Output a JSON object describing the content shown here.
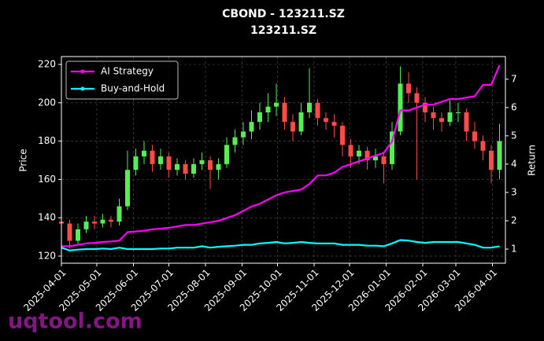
{
  "chart_data": {
    "type": "candlestick",
    "title": "CBOND - 123211.SZ",
    "subtitle": "123211.SZ",
    "ylabel": "Price",
    "y2label": "Return",
    "watermark": "uqtool.com",
    "grid": true,
    "legend": "upper left",
    "up_color": "#55ee55",
    "down_color": "#ff4a4a",
    "xlim": [
      "2025-04-01",
      "2026-04-12"
    ],
    "xticks": [
      "2025-04-01",
      "2025-05-01",
      "2025-06-01",
      "2025-07-01",
      "2025-08-01",
      "2025-09-01",
      "2025-10-01",
      "2025-11-01",
      "2025-12-01",
      "2026-01-01",
      "2026-02-01",
      "2026-03-01",
      "2026-04-01"
    ],
    "ylim": [
      116.3,
      224.1
    ],
    "yticks": [
      120,
      140,
      160,
      180,
      200,
      220
    ],
    "y2lim": [
      0.5,
      7.8
    ],
    "y2ticks": [
      1,
      2,
      3,
      4,
      5,
      6,
      7
    ],
    "x": [
      "2025-04-01",
      "2025-04-08",
      "2025-04-15",
      "2025-04-22",
      "2025-04-29",
      "2025-05-06",
      "2025-05-13",
      "2025-05-20",
      "2025-05-27",
      "2025-06-03",
      "2025-06-10",
      "2025-06-17",
      "2025-06-24",
      "2025-07-01",
      "2025-07-08",
      "2025-07-15",
      "2025-07-22",
      "2025-07-29",
      "2025-08-05",
      "2025-08-12",
      "2025-08-19",
      "2025-08-26",
      "2025-09-02",
      "2025-09-09",
      "2025-09-16",
      "2025-09-23",
      "2025-09-30",
      "2025-10-07",
      "2025-10-14",
      "2025-10-21",
      "2025-10-28",
      "2025-11-04",
      "2025-11-11",
      "2025-11-18",
      "2025-11-25",
      "2025-12-02",
      "2025-12-09",
      "2025-12-16",
      "2025-12-23",
      "2025-12-30",
      "2026-01-06",
      "2026-01-13",
      "2026-01-20",
      "2026-01-27",
      "2026-02-03",
      "2026-02-10",
      "2026-02-17",
      "2026-02-24",
      "2026-03-03",
      "2026-03-10",
      "2026-03-17",
      "2026-03-24",
      "2026-03-31",
      "2026-04-07"
    ],
    "open": [
      138,
      137,
      128,
      134,
      138,
      137,
      139,
      138,
      146,
      165,
      172,
      175,
      168,
      172,
      165,
      168,
      163,
      168,
      170,
      165,
      168,
      178,
      182,
      185,
      190,
      195,
      198,
      200,
      190,
      185,
      195,
      200,
      192,
      190,
      188,
      178,
      172,
      175,
      170,
      172,
      168,
      185,
      210,
      205,
      200,
      195,
      192,
      190,
      195,
      195,
      185,
      180,
      175,
      165
    ],
    "high": [
      142,
      139,
      137,
      141,
      141,
      142,
      141,
      150,
      175,
      176,
      180,
      178,
      176,
      174,
      171,
      170,
      171,
      174,
      172,
      171,
      182,
      186,
      190,
      196,
      200,
      205,
      210,
      203,
      194,
      200,
      218,
      202,
      195,
      194,
      190,
      181,
      178,
      177,
      176,
      174,
      190,
      219,
      216,
      208,
      203,
      198,
      195,
      202,
      200,
      197,
      190,
      183,
      178,
      189
    ],
    "low": [
      133,
      124,
      126,
      132,
      134,
      135,
      135,
      136,
      144,
      162,
      168,
      164,
      165,
      161,
      162,
      160,
      161,
      165,
      155,
      160,
      166,
      174,
      178,
      181,
      186,
      190,
      193,
      186,
      180,
      183,
      192,
      188,
      186,
      182,
      172,
      166,
      168,
      165,
      166,
      158,
      165,
      183,
      200,
      160,
      190,
      186,
      185,
      188,
      190,
      180,
      176,
      170,
      158,
      160
    ],
    "close": [
      137,
      128,
      134,
      138,
      137,
      139,
      138,
      146,
      165,
      172,
      175,
      168,
      172,
      165,
      168,
      163,
      168,
      170,
      165,
      168,
      178,
      182,
      185,
      190,
      195,
      198,
      200,
      190,
      185,
      195,
      200,
      192,
      190,
      188,
      178,
      172,
      175,
      170,
      172,
      168,
      185,
      210,
      205,
      200,
      195,
      192,
      190,
      195,
      195,
      185,
      180,
      175,
      165,
      180
    ],
    "series": [
      {
        "name": "AI Strategy",
        "color": "#ff00ff",
        "axis": "y2",
        "values": [
          1.1,
          1.1,
          1.15,
          1.2,
          1.22,
          1.25,
          1.27,
          1.3,
          1.6,
          1.62,
          1.65,
          1.7,
          1.72,
          1.75,
          1.8,
          1.85,
          1.85,
          1.9,
          1.95,
          2.0,
          2.1,
          2.2,
          2.35,
          2.5,
          2.6,
          2.75,
          2.9,
          3.0,
          3.05,
          3.1,
          3.3,
          3.6,
          3.6,
          3.7,
          3.9,
          4.0,
          4.1,
          4.2,
          4.3,
          4.4,
          4.8,
          5.9,
          5.9,
          6.0,
          6.1,
          6.1,
          6.2,
          6.3,
          6.3,
          6.35,
          6.4,
          6.8,
          6.8,
          7.5
        ]
      },
      {
        "name": "Buy-and-Hold",
        "color": "#00ffff",
        "axis": "y2",
        "values": [
          1.05,
          0.95,
          0.98,
          1.0,
          1.0,
          1.02,
          1.0,
          1.05,
          1.0,
          1.0,
          1.0,
          1.0,
          1.02,
          1.02,
          1.05,
          1.05,
          1.05,
          1.1,
          1.05,
          1.08,
          1.1,
          1.12,
          1.15,
          1.15,
          1.2,
          1.22,
          1.25,
          1.2,
          1.22,
          1.25,
          1.22,
          1.2,
          1.2,
          1.2,
          1.15,
          1.15,
          1.15,
          1.12,
          1.12,
          1.1,
          1.2,
          1.32,
          1.3,
          1.25,
          1.22,
          1.25,
          1.25,
          1.25,
          1.25,
          1.2,
          1.15,
          1.05,
          1.05,
          1.1
        ]
      }
    ]
  }
}
